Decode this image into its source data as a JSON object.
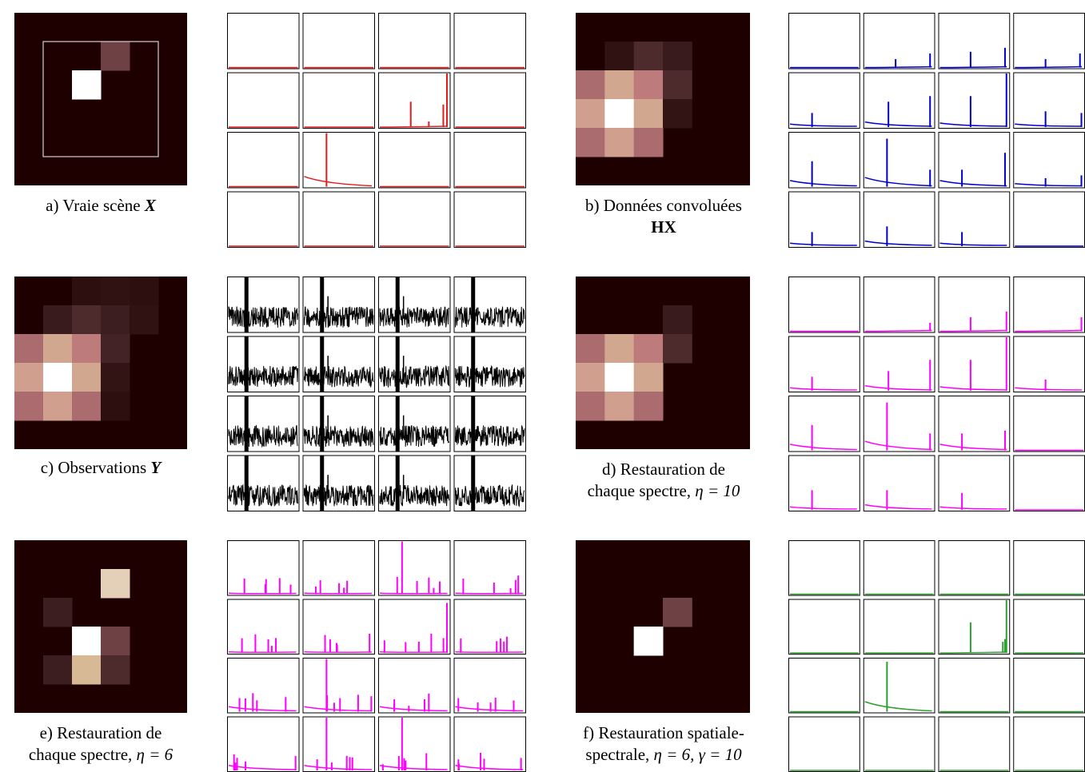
{
  "colors": {
    "background": "#1e0000",
    "true_scene": "#e41a1c",
    "convolved": "#0000cc",
    "observations": "#000000",
    "restoration": "#ff00ff",
    "spatial_spectral": "#2ca02c"
  },
  "panels": [
    {
      "id": "a",
      "caption": {
        "prefix": "a) Vraie scène ",
        "symbol": "X",
        "line2": ""
      },
      "series_color": "#e41a1c",
      "heatmap": [
        [
          0,
          0,
          0,
          0,
          0
        ],
        [
          0,
          0,
          0,
          0.35,
          0
        ],
        [
          0,
          0,
          1.0,
          0,
          0
        ],
        [
          0,
          0,
          0,
          0,
          0
        ],
        [
          0,
          0,
          0,
          0,
          0
        ]
      ],
      "has_inner_frame": true
    },
    {
      "id": "b",
      "caption": {
        "prefix": "b) Données convoluées",
        "symbol": "HX",
        "line2": ""
      },
      "series_color": "#0000cc",
      "heatmap": [
        [
          0,
          0,
          0,
          0,
          0
        ],
        [
          0,
          0.12,
          0.25,
          0.18,
          0
        ],
        [
          0.55,
          0.8,
          0.65,
          0.25,
          0
        ],
        [
          0.78,
          1.0,
          0.8,
          0.13,
          0
        ],
        [
          0.55,
          0.78,
          0.55,
          0,
          0
        ]
      ]
    },
    {
      "id": "c",
      "caption": {
        "prefix": "c) Observations ",
        "symbol": "Y",
        "line2": ""
      },
      "series_color": "#000000",
      "heatmap": [
        [
          0,
          0,
          0,
          0.1,
          0.12,
          0.1
        ],
        [
          0,
          0,
          0.18,
          0.25,
          0.2,
          0.12
        ],
        [
          0,
          0.55,
          0.8,
          0.65,
          0.22,
          0
        ],
        [
          0.12,
          0.78,
          1.0,
          0.8,
          0.13,
          0
        ],
        [
          0.12,
          0.55,
          0.78,
          0.55,
          0.1,
          0
        ],
        [
          0,
          0,
          0,
          0,
          0,
          0
        ]
      ]
    },
    {
      "id": "d",
      "caption": {
        "prefix": "d) Restauration de",
        "line2": "chaque spectre, ",
        "eq": "η = 10"
      },
      "series_color": "#ff00ff",
      "heatmap": [
        [
          0,
          0,
          0,
          0,
          0
        ],
        [
          0,
          0,
          0,
          0.18,
          0
        ],
        [
          0.55,
          0.8,
          0.65,
          0.25,
          0
        ],
        [
          0.78,
          1.0,
          0.8,
          0,
          0
        ],
        [
          0.55,
          0.78,
          0.55,
          0,
          0
        ]
      ]
    },
    {
      "id": "e",
      "caption": {
        "prefix": "e) Restauration de",
        "line2": "chaque spectre, ",
        "eq": "η = 6"
      },
      "series_color": "#ff00ff",
      "heatmap": [
        [
          0,
          0,
          0,
          0,
          0
        ],
        [
          0,
          0,
          0,
          0.9,
          0
        ],
        [
          0,
          0.2,
          0,
          0,
          0
        ],
        [
          0,
          0,
          1.0,
          0.35,
          0
        ],
        [
          0,
          0.2,
          0.85,
          0.25,
          0
        ]
      ]
    },
    {
      "id": "f",
      "caption": {
        "prefix": "f) Restauration spatiale-",
        "line2": "spectrale, ",
        "eq": "η = 6, γ = 10"
      },
      "series_color": "#2ca02c",
      "heatmap": [
        [
          0,
          0,
          0,
          0,
          0
        ],
        [
          0,
          0,
          0,
          0,
          0
        ],
        [
          0,
          0,
          0,
          0.35,
          0
        ],
        [
          0,
          0,
          1.0,
          0,
          0
        ],
        [
          0,
          0,
          0,
          0,
          0
        ]
      ]
    }
  ]
}
